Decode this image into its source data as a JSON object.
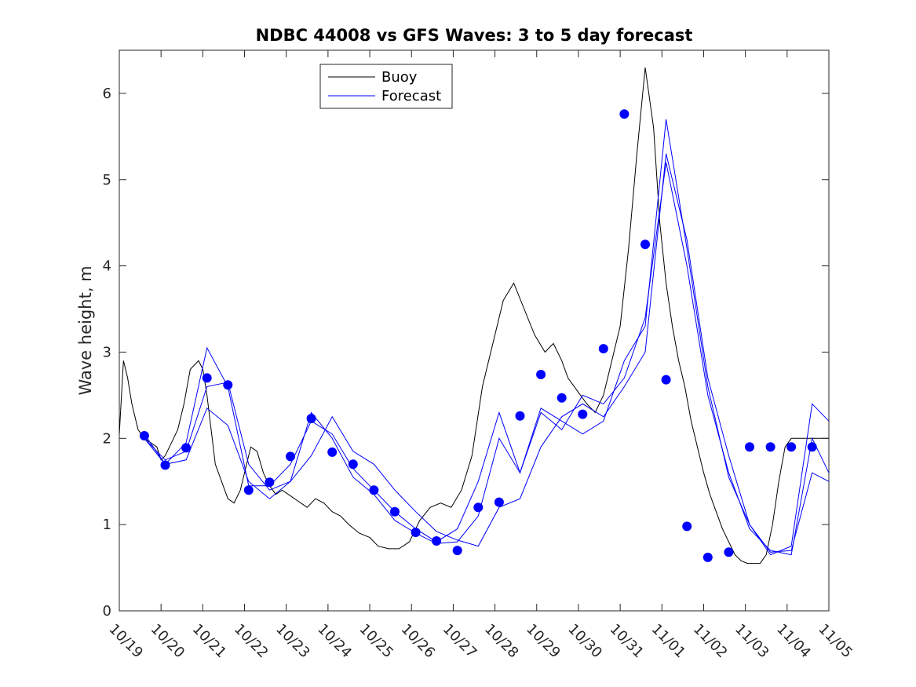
{
  "chart_data": {
    "type": "line",
    "title": "NDBC 44008 vs GFS Waves: 3 to 5 day forecast",
    "xlabel": "",
    "ylabel": "Wave height, m",
    "xlim": [
      0,
      17
    ],
    "ylim": [
      0,
      6.5
    ],
    "x_unit": "days since 10/19",
    "xtick_values": [
      0,
      1,
      2,
      3,
      4,
      5,
      6,
      7,
      8,
      9,
      10,
      11,
      12,
      13,
      14,
      15,
      16,
      17
    ],
    "xtick_labels": [
      "10/19",
      "10/20",
      "10/21",
      "10/22",
      "10/23",
      "10/24",
      "10/25",
      "10/26",
      "10/27",
      "10/28",
      "10/29",
      "10/30",
      "10/31",
      "11/01",
      "11/02",
      "11/03",
      "11/04",
      "11/05"
    ],
    "ytick_values": [
      0,
      1,
      2,
      3,
      4,
      5,
      6
    ],
    "ytick_labels": [
      "0",
      "1",
      "2",
      "3",
      "4",
      "5",
      "6"
    ],
    "legend": {
      "location": "top-center",
      "entries": [
        {
          "label": "Buoy",
          "color": "#000000"
        },
        {
          "label": "Forecast",
          "color": "#0000ff"
        }
      ]
    },
    "colors": {
      "buoy": "#000000",
      "forecast": "#0000ff",
      "markers": "#0000ff"
    },
    "series": [
      {
        "name": "Buoy",
        "color": "#000000",
        "x": [
          0.0,
          0.1,
          0.2,
          0.3,
          0.45,
          0.6,
          0.75,
          0.9,
          1.0,
          1.1,
          1.25,
          1.4,
          1.55,
          1.7,
          1.8,
          1.9,
          2.0,
          2.1,
          2.2,
          2.3,
          2.45,
          2.6,
          2.75,
          2.9,
          3.0,
          3.15,
          3.3,
          3.45,
          3.6,
          3.75,
          3.9,
          4.05,
          4.2,
          4.35,
          4.5,
          4.7,
          4.9,
          5.1,
          5.3,
          5.5,
          5.75,
          6.0,
          6.2,
          6.45,
          6.7,
          6.95,
          7.2,
          7.45,
          7.7,
          7.95,
          8.2,
          8.45,
          8.7,
          8.95,
          9.2,
          9.45,
          9.7,
          9.95,
          10.2,
          10.4,
          10.6,
          10.75,
          10.9,
          11.05,
          11.2,
          11.4,
          11.6,
          11.8,
          12.0,
          12.2,
          12.4,
          12.6,
          12.8,
          12.95,
          13.1,
          13.25,
          13.4,
          13.55,
          13.7,
          13.85,
          14.0,
          14.15,
          14.3,
          14.45,
          14.6,
          14.75,
          14.9,
          15.05,
          15.2,
          15.35,
          15.5,
          15.65,
          15.8,
          15.95,
          16.1,
          16.25,
          16.4,
          16.55,
          16.7,
          16.85,
          17.0
        ],
        "values": [
          2.05,
          2.9,
          2.7,
          2.4,
          2.1,
          2.0,
          1.95,
          1.9,
          1.75,
          1.8,
          1.95,
          2.1,
          2.4,
          2.8,
          2.85,
          2.9,
          2.8,
          2.5,
          2.1,
          1.7,
          1.5,
          1.3,
          1.25,
          1.4,
          1.6,
          1.9,
          1.85,
          1.6,
          1.45,
          1.35,
          1.4,
          1.35,
          1.3,
          1.25,
          1.2,
          1.3,
          1.25,
          1.15,
          1.1,
          1.0,
          0.9,
          0.85,
          0.75,
          0.72,
          0.72,
          0.8,
          1.05,
          1.2,
          1.25,
          1.2,
          1.4,
          1.8,
          2.6,
          3.1,
          3.6,
          3.8,
          3.5,
          3.2,
          3.0,
          3.1,
          2.9,
          2.7,
          2.6,
          2.5,
          2.4,
          2.3,
          2.5,
          2.9,
          3.3,
          4.2,
          5.3,
          6.3,
          5.6,
          4.5,
          3.8,
          3.3,
          2.9,
          2.6,
          2.2,
          1.9,
          1.6,
          1.35,
          1.15,
          0.95,
          0.8,
          0.65,
          0.58,
          0.55,
          0.55,
          0.55,
          0.65,
          1.0,
          1.5,
          1.9,
          2.0,
          2.0,
          2.0,
          2.0,
          2.0,
          2.0,
          2.0
        ]
      },
      {
        "name": "Forecast",
        "color": "#0000ff",
        "x": [
          0.6,
          1.1,
          1.6,
          2.1,
          2.6,
          3.1,
          3.6,
          4.1,
          4.6,
          5.1,
          5.6,
          6.1,
          6.6,
          7.1,
          7.6,
          8.1,
          8.6,
          9.1,
          9.6,
          10.1,
          10.6,
          11.1,
          11.6,
          12.1,
          12.6,
          13.1,
          13.6,
          14.1,
          14.6,
          15.1,
          15.6,
          16.1,
          16.6,
          17.0
        ],
        "values": [
          2.0,
          1.75,
          1.85,
          2.6,
          2.65,
          1.7,
          1.4,
          1.5,
          1.8,
          2.25,
          1.85,
          1.7,
          1.4,
          1.15,
          0.92,
          0.82,
          0.75,
          1.2,
          1.3,
          1.9,
          2.25,
          2.4,
          2.25,
          2.6,
          3.0,
          5.3,
          4.3,
          2.7,
          1.8,
          1.0,
          0.65,
          0.75,
          2.4,
          2.2
        ]
      },
      {
        "name": "Forecast",
        "color": "#0000ff",
        "x": [
          0.6,
          1.1,
          1.6,
          2.1,
          2.6,
          3.1,
          3.6,
          4.1,
          4.6,
          5.1,
          5.6,
          6.1,
          6.6,
          7.1,
          7.6,
          8.1,
          8.6,
          9.1,
          9.6,
          10.1,
          10.6,
          11.1,
          11.6,
          12.1,
          12.6,
          13.1,
          13.6,
          14.1,
          14.6,
          15.1,
          15.6,
          16.1,
          16.6,
          17.0
        ],
        "values": [
          2.05,
          1.7,
          1.95,
          3.05,
          2.6,
          1.45,
          1.45,
          1.7,
          2.2,
          2.05,
          1.65,
          1.4,
          1.15,
          0.95,
          0.8,
          0.95,
          1.5,
          2.3,
          1.6,
          2.3,
          2.1,
          2.5,
          2.4,
          2.7,
          3.4,
          5.2,
          4.0,
          2.5,
          1.6,
          0.95,
          0.7,
          0.65,
          2.0,
          1.6
        ]
      },
      {
        "name": "Forecast",
        "color": "#0000ff",
        "x": [
          0.6,
          1.1,
          1.6,
          2.1,
          2.6,
          3.1,
          3.6,
          4.1,
          4.6,
          5.1,
          5.6,
          6.1,
          6.6,
          7.1,
          7.6,
          8.1,
          8.6,
          9.1,
          9.6,
          10.1,
          10.6,
          11.1,
          11.6,
          12.1,
          12.6,
          13.1,
          13.6,
          14.1,
          14.6,
          15.1,
          15.6,
          16.1,
          16.6,
          17.0
        ],
        "values": [
          2.0,
          1.7,
          1.75,
          2.35,
          2.15,
          1.5,
          1.3,
          1.5,
          2.3,
          2.0,
          1.55,
          1.35,
          1.05,
          0.9,
          0.78,
          0.8,
          1.1,
          2.0,
          1.6,
          2.35,
          2.2,
          2.05,
          2.2,
          2.9,
          3.3,
          5.7,
          4.2,
          2.6,
          1.55,
          1.0,
          0.68,
          0.7,
          1.6,
          1.5
        ]
      }
    ],
    "markers": {
      "name": "Forecast points",
      "color": "#0000ff",
      "x": [
        0.6,
        1.1,
        1.6,
        2.1,
        2.6,
        3.1,
        3.6,
        4.1,
        4.6,
        5.1,
        5.6,
        6.1,
        6.6,
        7.1,
        7.6,
        8.1,
        8.6,
        9.1,
        9.6,
        10.1,
        10.6,
        11.1,
        11.6,
        12.1,
        12.6,
        13.1,
        13.6,
        14.1,
        14.6,
        15.1,
        15.6,
        16.1,
        16.6
      ],
      "values": [
        2.03,
        1.69,
        1.89,
        2.7,
        2.62,
        1.4,
        1.49,
        1.79,
        2.23,
        1.84,
        1.7,
        1.4,
        1.15,
        0.91,
        0.81,
        0.7,
        1.2,
        1.26,
        2.26,
        2.74,
        2.47,
        2.28,
        3.04,
        5.76,
        4.25,
        2.68,
        0.98,
        0.62,
        0.68,
        1.9,
        1.9,
        1.9,
        1.9
      ]
    }
  }
}
